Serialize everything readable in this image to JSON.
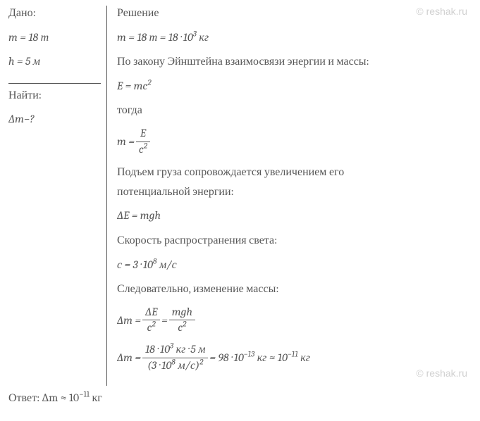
{
  "watermark": "© reshak.ru",
  "given": {
    "title": "Дано:",
    "m": "m = 18 т",
    "h": "h = 5 м"
  },
  "find": {
    "title": "Найти:",
    "dm": "∆m−?"
  },
  "solution": {
    "title": "Решение",
    "mass_conv_prefix": "m = 18 т = 18 · 10",
    "mass_conv_exp": "3",
    "mass_conv_suffix": " кг",
    "einstein_law": "По закону Эйнштейна взаимосвязи энергии и массы:",
    "emc2_prefix": "E = mc",
    "emc2_exp": "2",
    "then": "тогда",
    "m_eq": "m = ",
    "m_frac_num": "E",
    "m_frac_den_prefix": "c",
    "m_frac_den_exp": "2",
    "lift_text1": "Подъем груза сопровождается увеличением его",
    "lift_text2": "потенциальной энергии:",
    "de_eq": "∆E = mgh",
    "light_speed_text": "Скорость распространения света:",
    "c_val_prefix": "с = 3 · 10",
    "c_val_exp": "8",
    "c_val_suffix": " м/с",
    "therefore": "Следовательно, изменение массы:",
    "dm_eq": "∆m = ",
    "dm_frac1_num": "∆E",
    "dm_frac1_den_prefix": "c",
    "dm_frac1_den_exp": "2",
    "dm_eq_mid": " = ",
    "dm_frac2_num": "mgh",
    "dm_frac2_den_prefix": "c",
    "dm_frac2_den_exp": "2",
    "dm_calc_eq": "∆m = ",
    "dm_calc_num_prefix": "18 · 10",
    "dm_calc_num_exp": "3",
    "dm_calc_num_suffix": " кг · 5 м",
    "dm_calc_den_prefix": "(3 · 10",
    "dm_calc_den_exp": "8",
    "dm_calc_den_mid": " м/с)",
    "dm_calc_den_exp2": "2",
    "dm_calc_res_prefix": " = 98 · 10",
    "dm_calc_res_exp": "−13",
    "dm_calc_res_mid": " кг ≈ 10",
    "dm_calc_res_exp2": "−11",
    "dm_calc_res_suffix": " кг"
  },
  "answer": {
    "prefix": "Ответ:  ∆m ≈ 10",
    "exp": "−11",
    "suffix": " кг"
  },
  "colors": {
    "text": "#565656",
    "watermark": "#d0d0d0",
    "background": "#ffffff"
  }
}
